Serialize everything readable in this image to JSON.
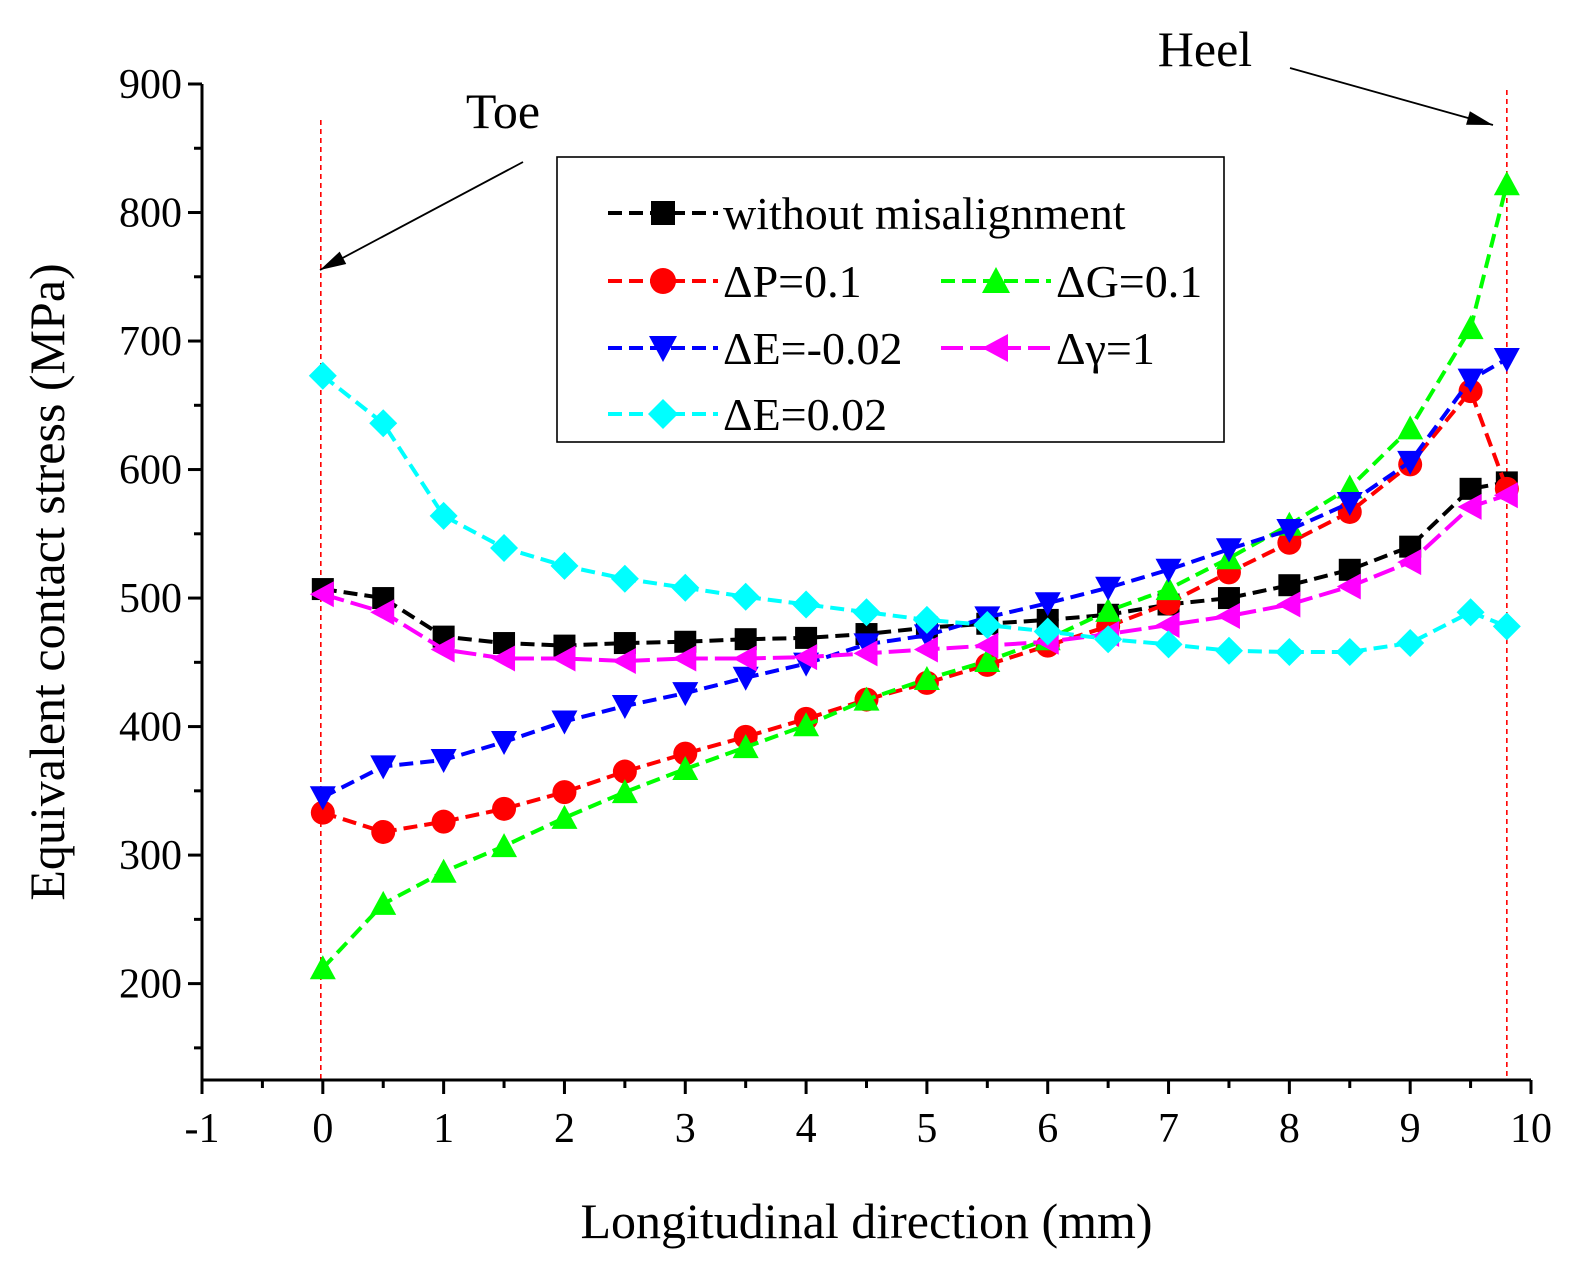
{
  "chart_data": {
    "type": "line",
    "title": "",
    "xlabel": "Longitudinal direction (mm)",
    "ylabel": "Equivalent contact stress (MPa)",
    "xlim": [
      -1,
      10
    ],
    "ylim": [
      125,
      900
    ],
    "xticks": [
      -1,
      0,
      1,
      2,
      3,
      4,
      5,
      6,
      7,
      8,
      9,
      10
    ],
    "yticks": [
      200,
      300,
      400,
      500,
      600,
      700,
      800,
      900
    ],
    "x": [
      0,
      0.5,
      1,
      1.5,
      2,
      2.5,
      3,
      3.5,
      4,
      4.5,
      5,
      5.5,
      6,
      6.5,
      7,
      7.5,
      8,
      8.5,
      9,
      9.5,
      9.8
    ],
    "series": [
      {
        "name": "without misalignment",
        "color": "#000000",
        "marker": "square",
        "values": [
          507,
          500,
          470,
          465,
          463,
          465,
          466,
          468,
          469,
          472,
          477,
          480,
          483,
          487,
          495,
          500,
          510,
          522,
          540,
          585,
          590
        ]
      },
      {
        "name": "ΔP=0.1",
        "color": "#ff0000",
        "marker": "circle",
        "values": [
          333,
          318,
          326,
          336,
          349,
          365,
          379,
          392,
          406,
          421,
          434,
          448,
          463,
          478,
          496,
          520,
          543,
          567,
          604,
          661,
          585
        ]
      },
      {
        "name": "ΔG=0.1",
        "color": "#00ff00",
        "marker": "triangle-up",
        "values": [
          212,
          262,
          287,
          307,
          329,
          349,
          367,
          384,
          401,
          421,
          437,
          451,
          468,
          490,
          507,
          531,
          557,
          586,
          632,
          710,
          822
        ]
      },
      {
        "name": "ΔE=-0.02",
        "color": "#0000ff",
        "marker": "triangle-down",
        "values": [
          345,
          369,
          374,
          388,
          404,
          416,
          426,
          438,
          449,
          464,
          471,
          485,
          496,
          508,
          522,
          538,
          553,
          574,
          606,
          670,
          686
        ]
      },
      {
        "name": "Δγ=1",
        "color": "#ff00ff",
        "marker": "triangle-left",
        "values": [
          503,
          489,
          460,
          453,
          453,
          451,
          453,
          453,
          454,
          457,
          460,
          463,
          466,
          472,
          479,
          486,
          495,
          509,
          528,
          571,
          580
        ]
      },
      {
        "name": "ΔE=0.02",
        "color": "#00ffff",
        "marker": "diamond",
        "values": [
          673,
          636,
          564,
          539,
          525,
          515,
          508,
          501,
          495,
          489,
          483,
          479,
          474,
          468,
          464,
          459,
          458,
          458,
          465,
          489,
          478
        ]
      }
    ],
    "annotations": [
      {
        "text": "Toe",
        "x": 0
      },
      {
        "text": "Heel",
        "x": 9.8
      }
    ],
    "legend_position": "upper-center"
  }
}
